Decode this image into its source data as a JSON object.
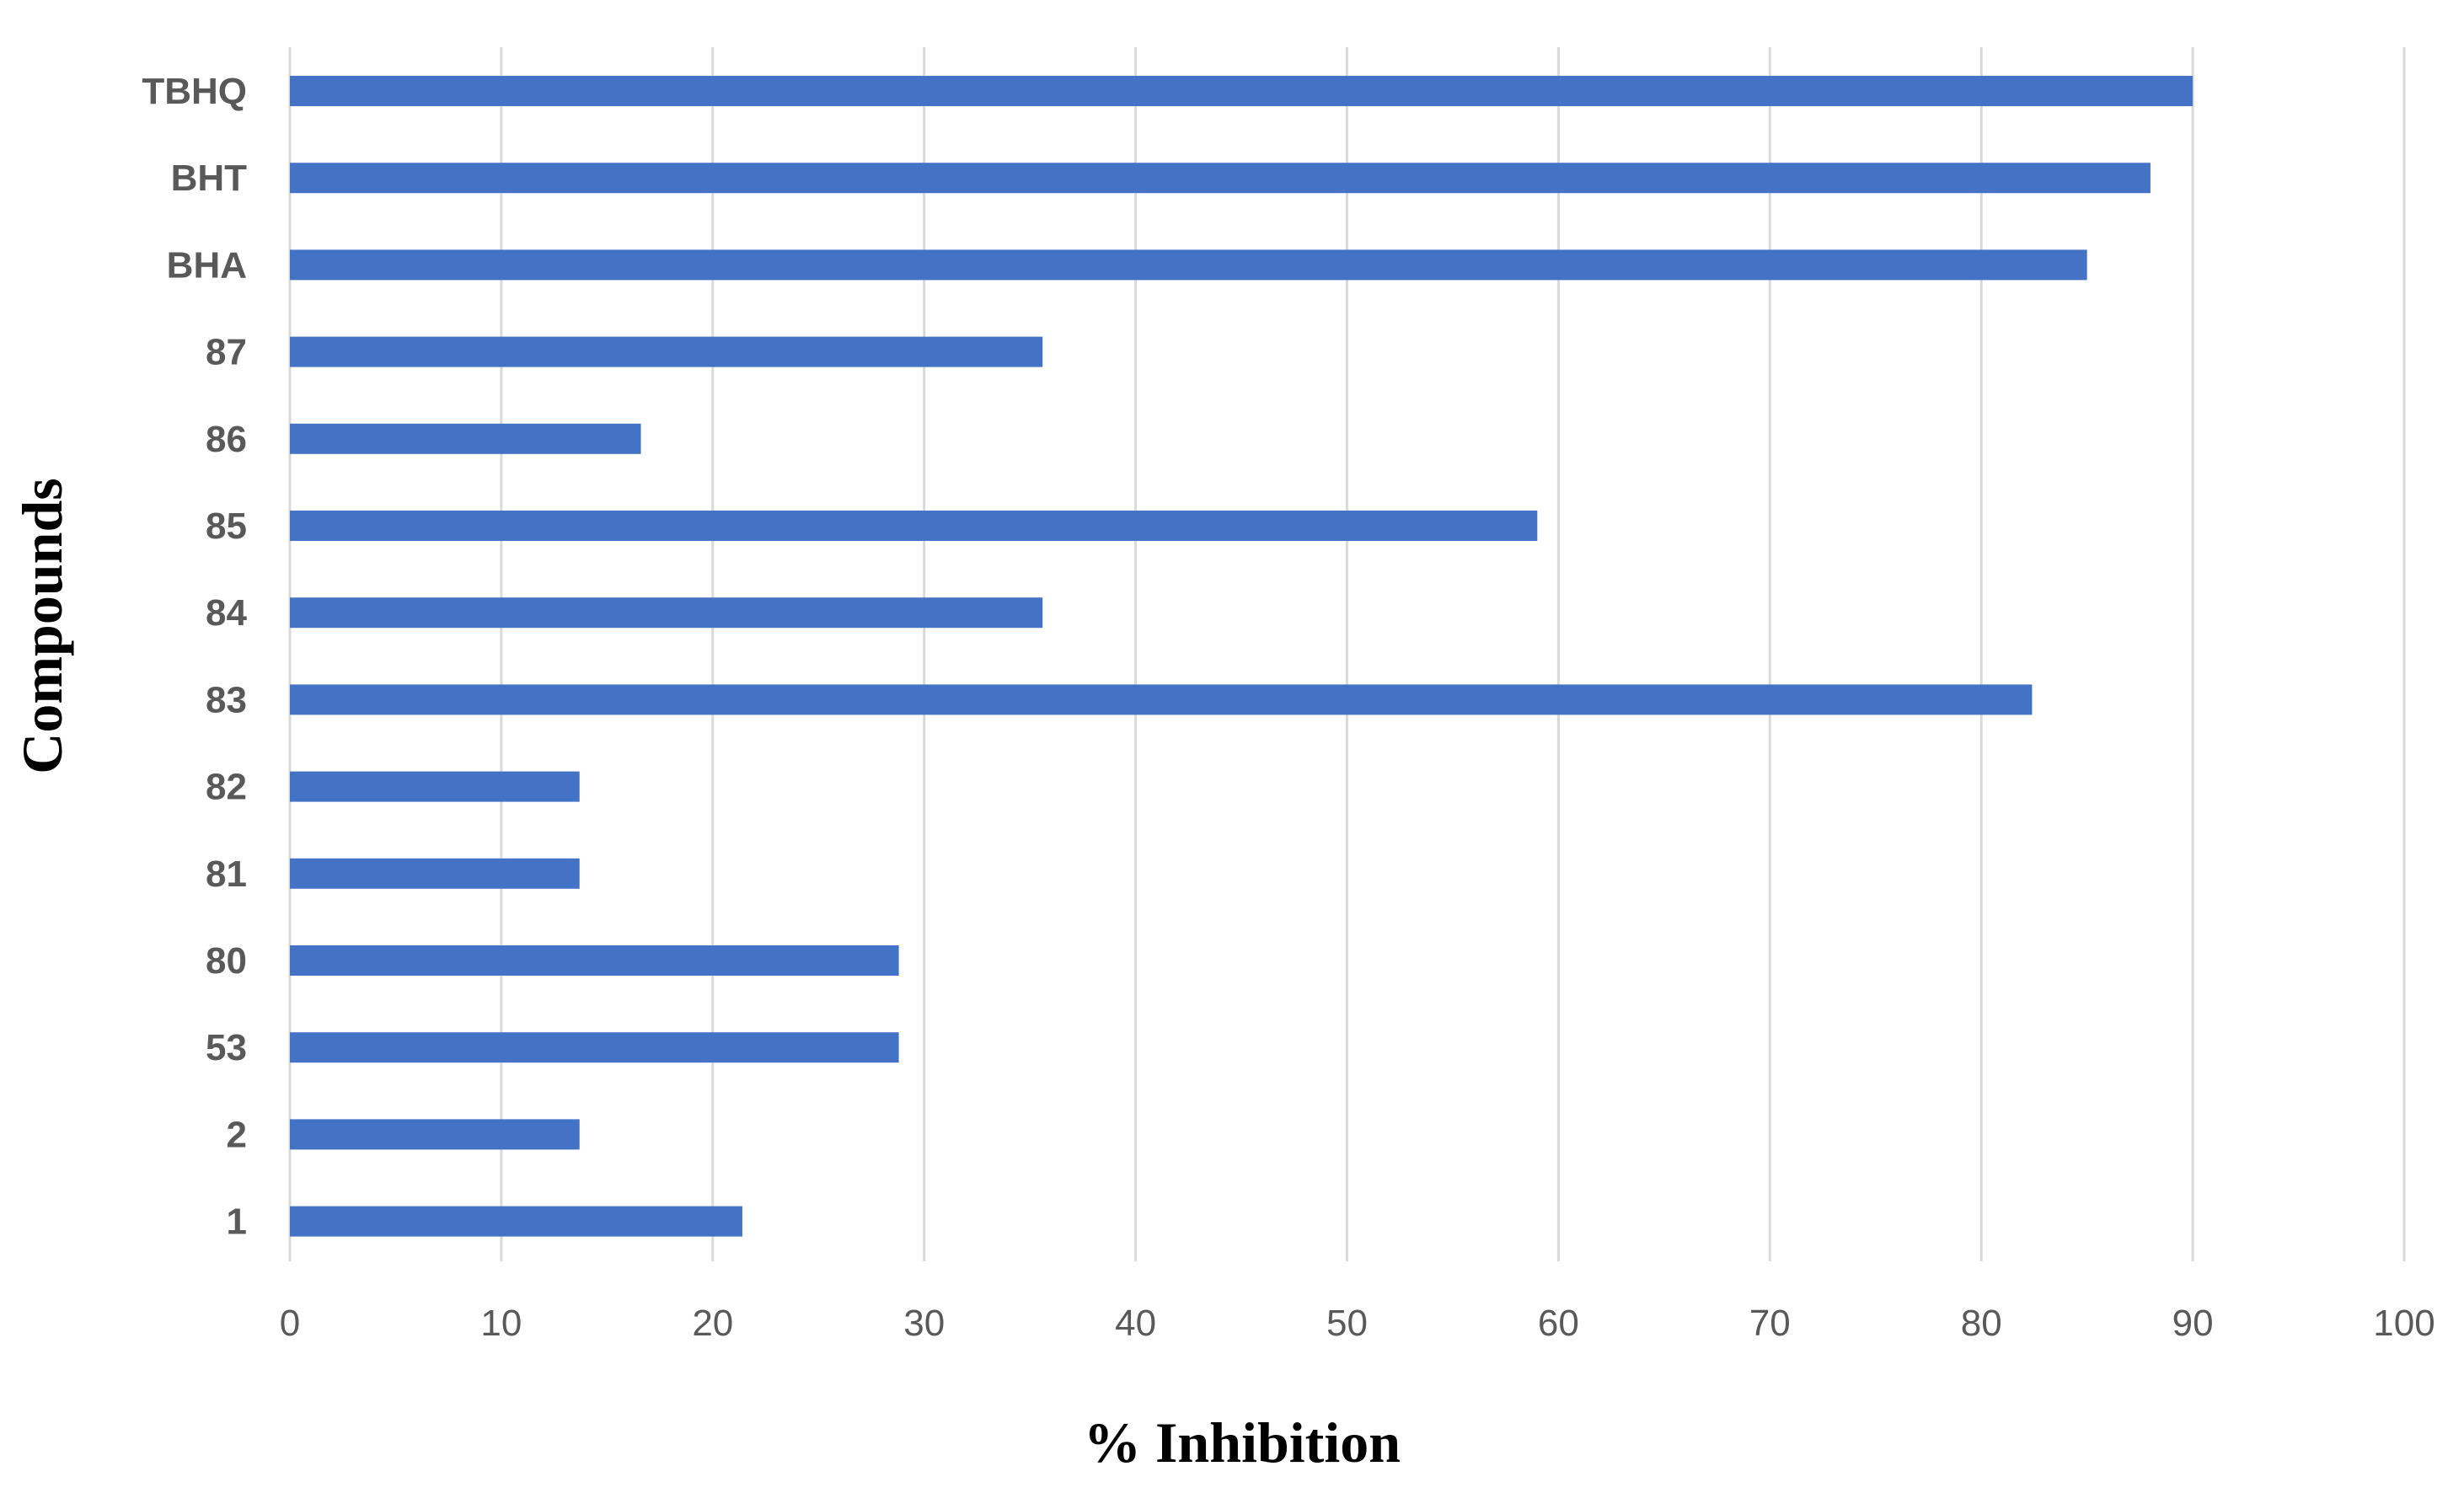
{
  "chart_data": {
    "type": "bar",
    "orientation": "horizontal",
    "categories": [
      "1",
      "2",
      "53",
      "80",
      "81",
      "82",
      "83",
      "84",
      "85",
      "86",
      "87",
      "BHA",
      "BHT",
      "TBHQ"
    ],
    "values": [
      21.4,
      13.7,
      28.8,
      28.8,
      13.7,
      13.7,
      82.4,
      35.6,
      59.0,
      16.6,
      35.6,
      85.0,
      88.0,
      90.0
    ],
    "xlabel": "% Inhibition",
    "ylabel": "Compounds",
    "xlim": [
      0,
      100
    ],
    "xticks": [
      "0",
      "10",
      "20",
      "30",
      "40",
      "50",
      "60",
      "70",
      "80",
      "90",
      "100"
    ],
    "grid": true,
    "bar_color": "#4472c4",
    "legend": "none"
  }
}
